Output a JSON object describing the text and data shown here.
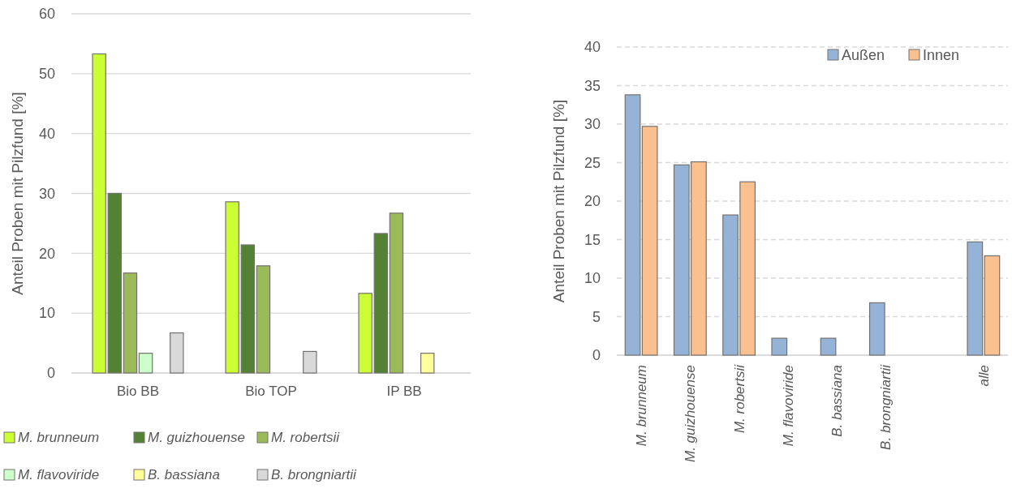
{
  "chart_data": [
    {
      "type": "bar",
      "categories": [
        "Bio BB",
        "Bio TOP",
        "IP BB"
      ],
      "ylabel": "Anteil Proben mit Pilzfund  [%]",
      "ylim": [
        0,
        60
      ],
      "yticks": [
        0,
        10,
        20,
        30,
        40,
        50,
        60
      ],
      "grid": "y",
      "legend": "bottom",
      "series": [
        {
          "name": "M. brunneum",
          "color": "#ccff33",
          "values": [
            53.3,
            28.6,
            13.3
          ]
        },
        {
          "name": "M. guizhouense",
          "color": "#548235",
          "values": [
            30,
            21.4,
            23.3
          ]
        },
        {
          "name": "M. robertsii",
          "color": "#9bbb59",
          "values": [
            16.7,
            17.9,
            26.7
          ]
        },
        {
          "name": "M. flavoviride",
          "color": "#ccffcc",
          "values": [
            3.3,
            null,
            null
          ]
        },
        {
          "name": "B. bassiana",
          "color": "#ffff99",
          "values": [
            null,
            null,
            3.3
          ]
        },
        {
          "name": "B. brongniartii",
          "color": "#d9d9d9",
          "values": [
            6.7,
            3.6,
            null
          ]
        }
      ]
    },
    {
      "type": "bar",
      "categories": [
        "M. brunneum",
        "M. guizhouense",
        "M. robertsii",
        "M. flavoviride",
        "B. bassiana",
        "B. brongniartii",
        null,
        "alle"
      ],
      "ylabel": "Anteil Proben mit Pilzfund [%]",
      "ylim": [
        0,
        40
      ],
      "yticks": [
        0,
        5,
        10,
        15,
        20,
        25,
        30,
        35,
        40
      ],
      "grid": "y",
      "legend": "top right",
      "series": [
        {
          "name": "Außen",
          "color": "#95b3d7",
          "values": [
            33.8,
            24.7,
            18.2,
            2.2,
            2.2,
            6.8,
            null,
            14.7
          ]
        },
        {
          "name": "Innen",
          "color": "#fac090",
          "values": [
            29.7,
            25.1,
            22.5,
            null,
            null,
            null,
            null,
            12.9
          ]
        }
      ]
    }
  ]
}
